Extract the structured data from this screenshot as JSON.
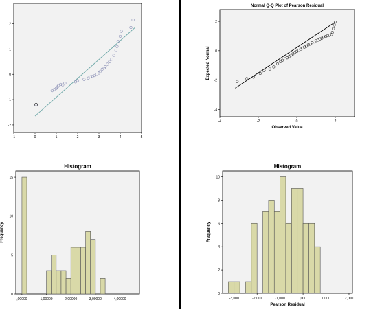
{
  "colors": {
    "plot_bg": "#f2f2f2",
    "bar_fill": "#d9d9a8",
    "bar_edge": "#555555",
    "qq_point_blue": "#8a8fb5",
    "qq_line_teal": "#6fa8a8",
    "frame": "#000000"
  },
  "chart_data": [
    {
      "type": "scatter",
      "title": "",
      "xlabel": "",
      "ylabel": "",
      "xlim": [
        -1,
        5
      ],
      "ylim": [
        -2.3,
        2.8
      ],
      "x_ticks": [
        -1,
        0,
        1,
        2,
        3,
        4,
        5
      ],
      "y_ticks": [
        -2,
        -1,
        0,
        1,
        2
      ],
      "line": [
        [
          0,
          -1.65
        ],
        [
          4.7,
          1.85
        ]
      ],
      "points": [
        [
          0.05,
          -1.2
        ],
        [
          0.8,
          -0.65
        ],
        [
          0.9,
          -0.6
        ],
        [
          1.0,
          -0.55
        ],
        [
          1.05,
          -0.5
        ],
        [
          1.1,
          -0.45
        ],
        [
          1.2,
          -0.4
        ],
        [
          1.3,
          -0.42
        ],
        [
          1.4,
          -0.35
        ],
        [
          1.9,
          -0.3
        ],
        [
          2.0,
          -0.25
        ],
        [
          2.3,
          -0.2
        ],
        [
          2.5,
          -0.15
        ],
        [
          2.6,
          -0.1
        ],
        [
          2.7,
          -0.08
        ],
        [
          2.8,
          -0.05
        ],
        [
          2.9,
          0.0
        ],
        [
          3.0,
          0.05
        ],
        [
          3.05,
          0.1
        ],
        [
          3.15,
          0.2
        ],
        [
          3.25,
          0.25
        ],
        [
          3.3,
          0.3
        ],
        [
          3.4,
          0.4
        ],
        [
          3.5,
          0.5
        ],
        [
          3.6,
          0.6
        ],
        [
          3.7,
          0.75
        ],
        [
          3.8,
          0.95
        ],
        [
          3.85,
          1.1
        ],
        [
          3.9,
          1.3
        ],
        [
          4.0,
          1.5
        ],
        [
          4.05,
          1.7
        ],
        [
          4.5,
          1.85
        ],
        [
          4.6,
          2.15
        ]
      ]
    },
    {
      "type": "scatter",
      "title": "Normal Q-Q Plot of Pearson Residual",
      "xlabel": "Observed Value",
      "ylabel": "Expected Normal",
      "xlim": [
        -4,
        3
      ],
      "ylim": [
        -4.5,
        2.8
      ],
      "x_ticks": [
        -4,
        -2,
        0,
        2
      ],
      "y_ticks": [
        -4,
        -2,
        0,
        2
      ],
      "line": [
        [
          -3.2,
          -2.55
        ],
        [
          2.0,
          1.95
        ]
      ],
      "points": [
        [
          -3.1,
          -2.1
        ],
        [
          -2.6,
          -1.9
        ],
        [
          -2.25,
          -1.8
        ],
        [
          -1.9,
          -1.55
        ],
        [
          -1.85,
          -1.45
        ],
        [
          -1.7,
          -1.35
        ],
        [
          -1.4,
          -1.25
        ],
        [
          -1.2,
          -1.1
        ],
        [
          -1.0,
          -0.9
        ],
        [
          -0.85,
          -0.75
        ],
        [
          -0.75,
          -0.65
        ],
        [
          -0.6,
          -0.55
        ],
        [
          -0.5,
          -0.48
        ],
        [
          -0.4,
          -0.4
        ],
        [
          -0.3,
          -0.3
        ],
        [
          -0.2,
          -0.22
        ],
        [
          -0.1,
          -0.12
        ],
        [
          0.0,
          -0.05
        ],
        [
          0.1,
          0.02
        ],
        [
          0.2,
          0.1
        ],
        [
          0.3,
          0.18
        ],
        [
          0.4,
          0.25
        ],
        [
          0.5,
          0.3
        ],
        [
          0.6,
          0.4
        ],
        [
          0.7,
          0.45
        ],
        [
          0.8,
          0.55
        ],
        [
          0.9,
          0.6
        ],
        [
          1.0,
          0.68
        ],
        [
          1.1,
          0.72
        ],
        [
          1.2,
          0.8
        ],
        [
          1.3,
          0.85
        ],
        [
          1.4,
          0.92
        ],
        [
          1.5,
          0.97
        ],
        [
          1.6,
          1.02
        ],
        [
          1.7,
          1.05
        ],
        [
          1.8,
          1.1
        ],
        [
          1.85,
          1.25
        ],
        [
          1.9,
          1.5
        ],
        [
          1.95,
          1.75
        ],
        [
          2.0,
          1.95
        ]
      ]
    },
    {
      "type": "bar",
      "title": "Histogram",
      "xlabel": "",
      "ylabel": "Frequency",
      "xlim": [
        -0.25,
        4.8
      ],
      "ylim": [
        0,
        15.8
      ],
      "bin_width": 0.2,
      "x_ticks": [
        0,
        1,
        2,
        3,
        4
      ],
      "x_tick_labels": [
        ",00000",
        "1,00000",
        "2,00000",
        "3,00000",
        "4,00000"
      ],
      "y_ticks": [
        0,
        5,
        10,
        15
      ],
      "bin_starts": [
        0,
        0.8,
        1.0,
        1.2,
        1.4,
        1.6,
        1.8,
        2.0,
        2.2,
        2.4,
        2.6,
        2.8,
        3.0,
        3.2,
        3.4,
        3.6,
        3.8,
        4.0,
        4.2,
        4.4
      ],
      "values": [
        15,
        0,
        3,
        5,
        3,
        3,
        2,
        6,
        6,
        6,
        8,
        7,
        0,
        2,
        0,
        0,
        0,
        0,
        0,
        0
      ]
    },
    {
      "type": "bar",
      "title": "Histogram",
      "xlabel": "Pearson Residual",
      "ylabel": "Frequency",
      "xlim": [
        -3.5,
        2.15
      ],
      "ylim": [
        0,
        10.5
      ],
      "bin_width": 0.25,
      "x_ticks": [
        -3,
        -2,
        -1,
        0,
        1,
        2
      ],
      "x_tick_labels": [
        "-3,000",
        "-2,000",
        "-1,000",
        ",000",
        "1,000",
        "2,000"
      ],
      "y_ticks": [
        0,
        2,
        4,
        6,
        8,
        10
      ],
      "bin_starts": [
        -3.25,
        -3.0,
        -2.75,
        -2.5,
        -2.25,
        -2.0,
        -1.75,
        -1.5,
        -1.25,
        -1.0,
        -0.75,
        -0.5,
        -0.25,
        0.0,
        0.25,
        0.5,
        0.75,
        1.0,
        1.25,
        1.5
      ],
      "values": [
        1,
        1,
        0,
        1,
        6,
        0,
        7,
        8,
        7,
        10,
        6,
        9,
        9,
        6,
        6,
        4,
        0,
        0,
        0,
        0
      ]
    }
  ]
}
